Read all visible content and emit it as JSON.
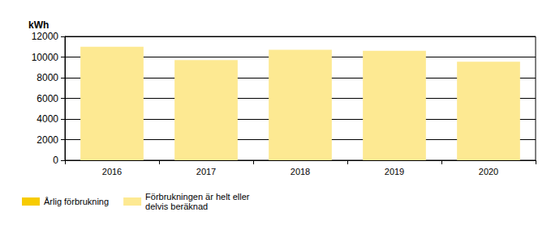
{
  "chart_data": {
    "type": "bar",
    "y_label": "kWh",
    "categories": [
      "2016",
      "2017",
      "2018",
      "2019",
      "2020"
    ],
    "series": [
      {
        "name": "Årlig förbrukning",
        "color": "#f7cb00",
        "values": [
          null,
          null,
          null,
          null,
          null
        ]
      },
      {
        "name": "Förbrukningen är helt eller\ndelvis beräknad",
        "color": "#fde992",
        "values": [
          11000,
          9700,
          10700,
          10600,
          9550
        ]
      }
    ],
    "ylim": [
      0,
      12000
    ],
    "yticks": [
      0,
      2000,
      4000,
      6000,
      8000,
      10000,
      12000
    ],
    "grid": true,
    "legend": "bottom-left"
  }
}
